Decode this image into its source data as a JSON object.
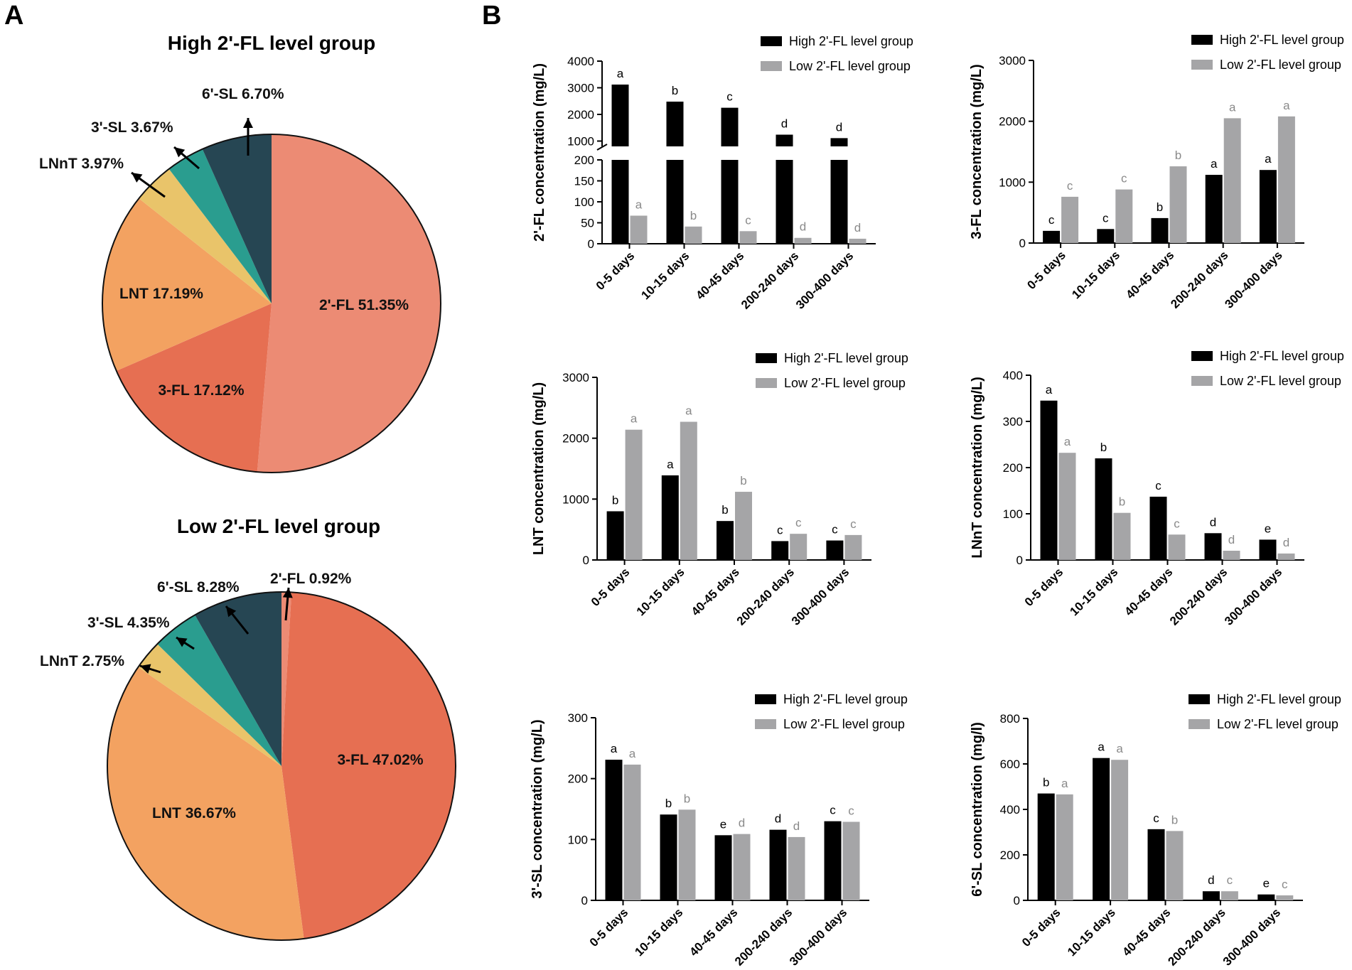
{
  "panels": {
    "a": "A",
    "b": "B"
  },
  "legend": {
    "high": "High 2'-FL level group",
    "low": "Low 2'-FL level group"
  },
  "colors": {
    "high_bar": "#000000",
    "low_bar": "#a5a5a7",
    "low_letter": "#8a8a8a",
    "fl2": "#ec8b74",
    "fl3": "#e66f52",
    "lnt": "#f3a261",
    "lnnt": "#e9c46a",
    "sl3": "#2a9d8f",
    "sl6": "#264653"
  },
  "chart_data": [
    {
      "type": "pie",
      "title": "High 2'-FL level group",
      "slices": [
        {
          "label": "2'-FL",
          "value": 51.35,
          "text": "2'-FL 51.35%",
          "color": "#ec8b74"
        },
        {
          "label": "3-FL",
          "value": 17.12,
          "text": "3-FL 17.12%",
          "color": "#e66f52"
        },
        {
          "label": "LNT",
          "value": 17.19,
          "text": "LNT 17.19%",
          "color": "#f3a261"
        },
        {
          "label": "LNnT",
          "value": 3.97,
          "text": "LNnT 3.97%",
          "color": "#e9c46a"
        },
        {
          "label": "3'-SL",
          "value": 3.67,
          "text": "3'-SL 3.67%",
          "color": "#2a9d8f"
        },
        {
          "label": "6'-SL",
          "value": 6.7,
          "text": "6'-SL 6.70%",
          "color": "#264653"
        }
      ]
    },
    {
      "type": "pie",
      "title": "Low 2'-FL level group",
      "slices": [
        {
          "label": "2'-FL",
          "value": 0.92,
          "text": "2'-FL 0.92%",
          "color": "#ec8b74"
        },
        {
          "label": "3-FL",
          "value": 47.02,
          "text": "3-FL 47.02%",
          "color": "#e66f52"
        },
        {
          "label": "LNT",
          "value": 36.67,
          "text": "LNT 36.67%",
          "color": "#f3a261"
        },
        {
          "label": "LNnT",
          "value": 2.75,
          "text": "LNnT 2.75%",
          "color": "#e9c46a"
        },
        {
          "label": "3'-SL",
          "value": 4.35,
          "text": "3'-SL 4.35%",
          "color": "#2a9d8f"
        },
        {
          "label": "6'-SL",
          "value": 8.28,
          "text": "6'-SL 8.28%",
          "color": "#264653"
        }
      ]
    },
    {
      "type": "bar",
      "ylabel": "2'-FL concentration (mg/L)",
      "categories": [
        "0-5 days",
        "10-15 days",
        "40-45 days",
        "200-240 days",
        "300-400 days"
      ],
      "axis_break": {
        "lower": [
          0,
          200
        ],
        "upper": [
          800,
          4000
        ]
      },
      "yticks_lower": [
        0,
        50,
        100,
        150,
        200
      ],
      "yticks_upper": [
        1000,
        2000,
        3000,
        4000
      ],
      "series": [
        {
          "name": "High 2'-FL level group",
          "values": [
            3120,
            2480,
            2250,
            1240,
            1110
          ],
          "letters": [
            "a",
            "b",
            "c",
            "d",
            "d"
          ]
        },
        {
          "name": "Low 2'-FL level group",
          "values": [
            67,
            41,
            30,
            14,
            12
          ],
          "letters": [
            "a",
            "b",
            "c",
            "d",
            "d"
          ]
        }
      ]
    },
    {
      "type": "bar",
      "ylabel": "3-FL concentration (mg/L)",
      "categories": [
        "0-5 days",
        "10-15 days",
        "40-45 days",
        "200-240 days",
        "300-400 days"
      ],
      "ylim": [
        0,
        3000
      ],
      "yticks": [
        0,
        1000,
        2000,
        3000
      ],
      "series": [
        {
          "name": "High 2'-FL level group",
          "values": [
            200,
            230,
            410,
            1120,
            1200
          ],
          "letters": [
            "c",
            "c",
            "b",
            "a",
            "a"
          ]
        },
        {
          "name": "Low 2'-FL level group",
          "values": [
            760,
            880,
            1260,
            2050,
            2080
          ],
          "letters": [
            "c",
            "c",
            "b",
            "a",
            "a"
          ]
        }
      ]
    },
    {
      "type": "bar",
      "ylabel": "LNT concentration (mg/L)",
      "categories": [
        "0-5 days",
        "10-15 days",
        "40-45 days",
        "200-240 days",
        "300-400 days"
      ],
      "ylim": [
        0,
        3000
      ],
      "yticks": [
        0,
        1000,
        2000,
        3000
      ],
      "series": [
        {
          "name": "High 2'-FL level group",
          "values": [
            800,
            1390,
            640,
            310,
            320
          ],
          "letters": [
            "b",
            "a",
            "b",
            "c",
            "c"
          ]
        },
        {
          "name": "Low 2'-FL level group",
          "values": [
            2140,
            2270,
            1120,
            430,
            410
          ],
          "letters": [
            "a",
            "a",
            "b",
            "c",
            "c"
          ]
        }
      ]
    },
    {
      "type": "bar",
      "ylabel": "LNnT concentration (mg/L)",
      "categories": [
        "0-5 days",
        "10-15 days",
        "40-45 days",
        "200-240 days",
        "300-400 days"
      ],
      "ylim": [
        0,
        400
      ],
      "yticks": [
        0,
        100,
        200,
        300,
        400
      ],
      "series": [
        {
          "name": "High 2'-FL level group",
          "values": [
            345,
            220,
            137,
            58,
            44
          ],
          "letters": [
            "a",
            "b",
            "c",
            "d",
            "e"
          ]
        },
        {
          "name": "Low 2'-FL level group",
          "values": [
            232,
            102,
            55,
            20,
            14
          ],
          "letters": [
            "a",
            "b",
            "c",
            "d",
            "d"
          ]
        }
      ]
    },
    {
      "type": "bar",
      "ylabel": "3'-SL concentration (mg/L)",
      "categories": [
        "0-5 days",
        "10-15 days",
        "40-45 days",
        "200-240 days",
        "300-400 days"
      ],
      "ylim": [
        0,
        300
      ],
      "yticks": [
        0,
        100,
        200,
        300
      ],
      "series": [
        {
          "name": "High 2'-FL level group",
          "values": [
            231,
            141,
            107,
            116,
            130
          ],
          "letters": [
            "a",
            "b",
            "e",
            "d",
            "c"
          ]
        },
        {
          "name": "Low 2'-FL level group",
          "values": [
            223,
            149,
            109,
            104,
            129
          ],
          "letters": [
            "a",
            "b",
            "d",
            "d",
            "c"
          ]
        }
      ]
    },
    {
      "type": "bar",
      "ylabel": "6'-SL concentration (mg/l)",
      "categories": [
        "0-5 days",
        "10-15 days",
        "40-45 days",
        "200-240 days",
        "300-400 days"
      ],
      "ylim": [
        0,
        800
      ],
      "yticks": [
        0,
        200,
        400,
        600,
        800
      ],
      "series": [
        {
          "name": "High 2'-FL level group",
          "values": [
            470,
            626,
            313,
            40,
            26
          ],
          "letters": [
            "b",
            "a",
            "c",
            "d",
            "e"
          ]
        },
        {
          "name": "Low 2'-FL level group",
          "values": [
            466,
            618,
            305,
            40,
            22
          ],
          "letters": [
            "a",
            "a",
            "b",
            "c",
            "c"
          ]
        }
      ]
    }
  ]
}
